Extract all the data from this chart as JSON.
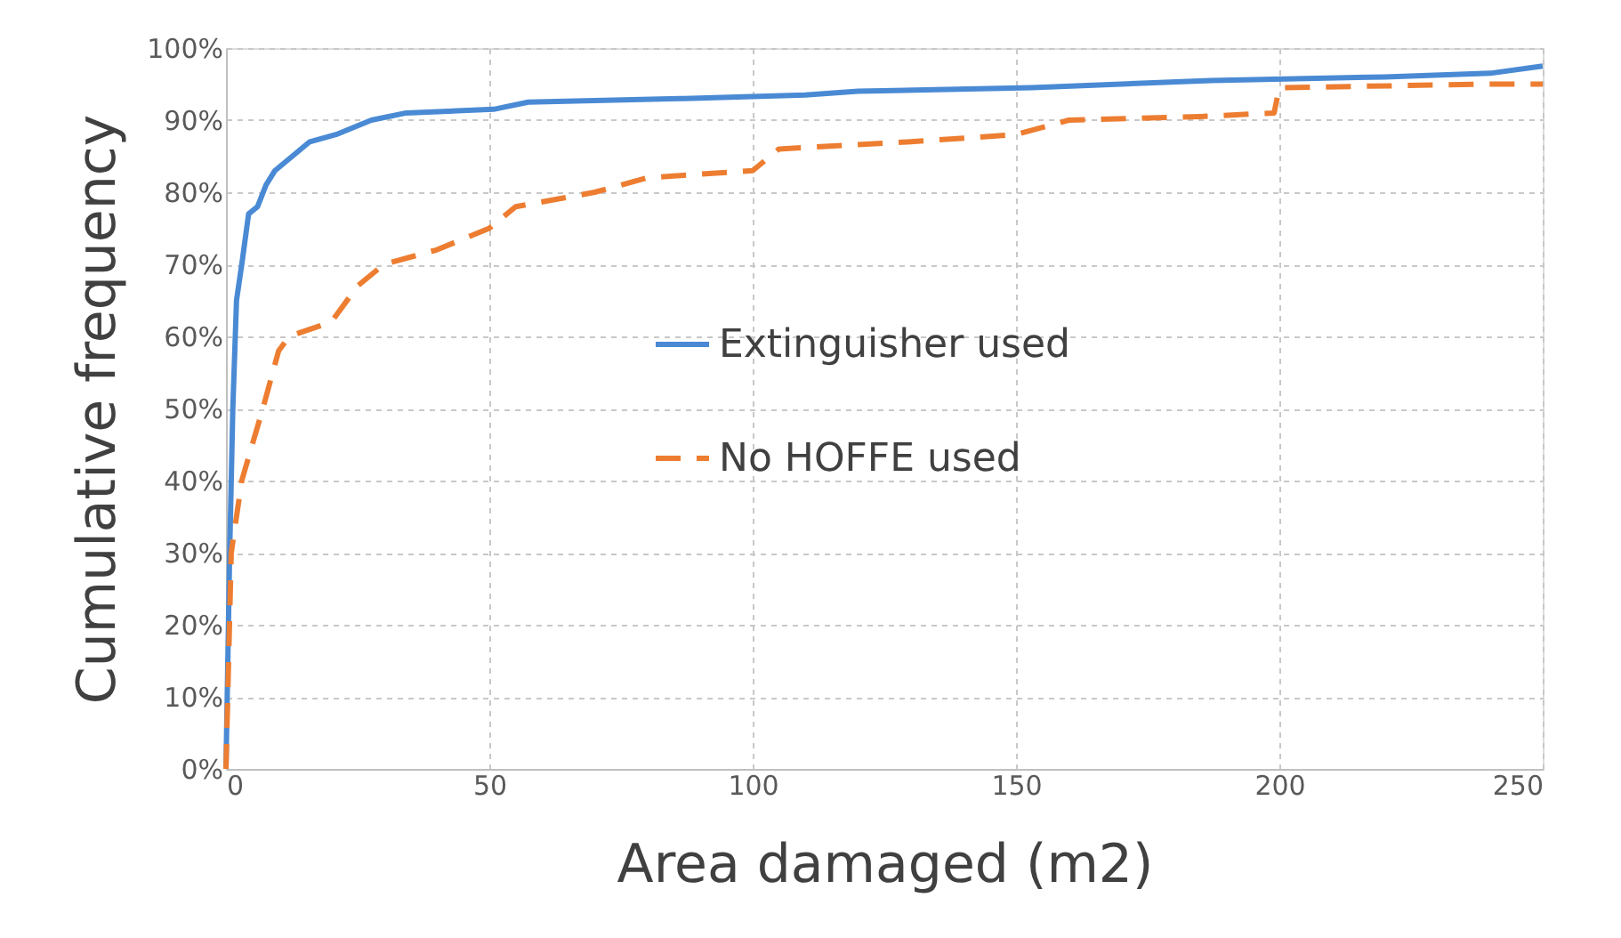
{
  "chart_data": {
    "type": "line",
    "xlabel": "Area damaged (m2)",
    "ylabel": "Cumulative frequency",
    "xlim": [
      0,
      250
    ],
    "xticks": [
      0,
      50,
      100,
      150,
      200,
      250
    ],
    "ylim": [
      0,
      100
    ],
    "yticks": [
      {
        "value": 0,
        "label": "0%"
      },
      {
        "value": 10,
        "label": "10%"
      },
      {
        "value": 20,
        "label": "20%"
      },
      {
        "value": 30,
        "label": "30%"
      },
      {
        "value": 40,
        "label": "40%"
      },
      {
        "value": 50,
        "label": "50%"
      },
      {
        "value": 60,
        "label": "60%"
      },
      {
        "value": 70,
        "label": "70%"
      },
      {
        "value": 80,
        "label": "80%"
      },
      {
        "value": 90,
        "label": "90%"
      },
      {
        "value": 100,
        "label": "100%"
      }
    ],
    "grid": true,
    "legend": "center",
    "marker": "none",
    "series": [
      {
        "name": "Extinguisher used",
        "color": "#4a8ad4",
        "line_style": "solid",
        "x": [
          0,
          0.7,
          1.3,
          2,
          3,
          4.3,
          6,
          7.6,
          9.3,
          12.6,
          15.9,
          20.9,
          27.6,
          34.2,
          50.8,
          57.4,
          87,
          110,
          120,
          153,
          170,
          187,
          220,
          240,
          250
        ],
        "values": [
          0,
          30,
          50,
          65,
          70,
          77,
          78,
          81,
          83,
          85,
          87,
          88,
          90,
          91,
          91.5,
          92.5,
          93,
          93.5,
          94,
          94.5,
          95,
          95.5,
          96,
          96.5,
          97.5
        ]
      },
      {
        "name": "No HOFFE used",
        "color": "#ed7d31",
        "line_style": "dashed",
        "x": [
          0,
          1,
          3,
          7,
          10,
          12,
          20,
          25,
          30,
          40,
          50,
          55,
          70,
          80,
          100,
          105,
          130,
          150,
          160,
          185,
          199,
          200,
          240,
          250
        ],
        "values": [
          0,
          30,
          40,
          50,
          58,
          60,
          62,
          67,
          70,
          72,
          75,
          78,
          80,
          82,
          83,
          86,
          87,
          88,
          90,
          90.5,
          91,
          94.5,
          95,
          95
        ]
      }
    ]
  }
}
